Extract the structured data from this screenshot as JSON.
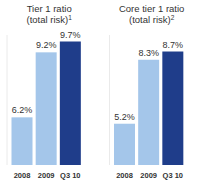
{
  "chart_data": [
    {
      "type": "bar",
      "title": "Tier 1 ratio (total risk)",
      "title_note": "1",
      "categories": [
        "2008",
        "2009",
        "Q3 10"
      ],
      "values": [
        6.2,
        9.2,
        9.7
      ],
      "value_labels": [
        "6.2%",
        "9.2%",
        "9.7%"
      ],
      "data_labels": true,
      "colors": [
        "#a4c6ea",
        "#a4c6ea",
        "#1f3d8a"
      ],
      "ylim": [
        4,
        10
      ],
      "tick_labels": "x"
    },
    {
      "type": "bar",
      "title": "Core tier 1 ratio (total risk)",
      "title_note": "2",
      "categories": [
        "2008",
        "2009",
        "Q3 10"
      ],
      "values": [
        5.2,
        8.3,
        8.7
      ],
      "value_labels": [
        "5.2%",
        "8.3%",
        "8.7%"
      ],
      "data_labels": true,
      "colors": [
        "#a4c6ea",
        "#a4c6ea",
        "#1f3d8a"
      ],
      "ylim": [
        3.2,
        9.5
      ],
      "tick_labels": "x"
    }
  ]
}
